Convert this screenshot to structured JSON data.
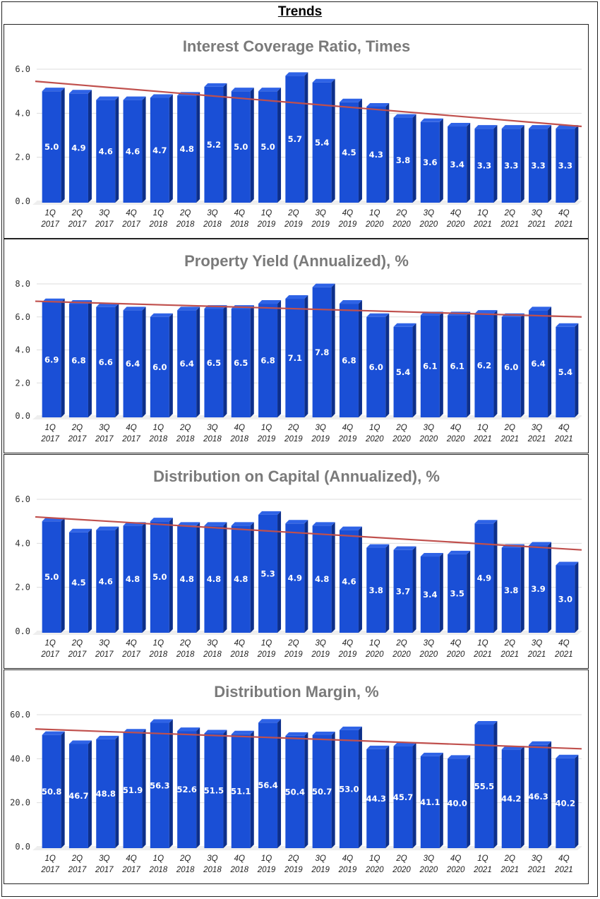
{
  "page": {
    "title": "Trends"
  },
  "colors": {
    "bar_front": "#1a4fd6",
    "bar_side": "#0d2f8a",
    "bar_top": "#2f63e6",
    "trend": "#c0504d",
    "grid": "#dddddd",
    "title": "#7a7a7a"
  },
  "categories": [
    [
      "1Q",
      "2017"
    ],
    [
      "2Q",
      "2017"
    ],
    [
      "3Q",
      "2017"
    ],
    [
      "4Q",
      "2017"
    ],
    [
      "1Q",
      "2018"
    ],
    [
      "2Q",
      "2018"
    ],
    [
      "3Q",
      "2018"
    ],
    [
      "4Q",
      "2018"
    ],
    [
      "1Q",
      "2019"
    ],
    [
      "2Q",
      "2019"
    ],
    [
      "3Q",
      "2019"
    ],
    [
      "4Q",
      "2019"
    ],
    [
      "1Q",
      "2020"
    ],
    [
      "2Q",
      "2020"
    ],
    [
      "3Q",
      "2020"
    ],
    [
      "4Q",
      "2020"
    ],
    [
      "1Q",
      "2021"
    ],
    [
      "2Q",
      "2021"
    ],
    [
      "3Q",
      "2021"
    ],
    [
      "4Q",
      "2021"
    ]
  ],
  "chart_data": [
    {
      "type": "bar",
      "title": "Interest Coverage Ratio, Times",
      "ylim": [
        0,
        6
      ],
      "yticks": [
        "0.0",
        "2.0",
        "4.0",
        "6.0"
      ],
      "ytick_values": [
        0,
        2,
        4,
        6
      ],
      "values": [
        5.0,
        4.9,
        4.6,
        4.6,
        4.7,
        4.8,
        5.2,
        5.0,
        5.0,
        5.7,
        5.4,
        4.5,
        4.3,
        3.8,
        3.6,
        3.4,
        3.3,
        3.3,
        3.3,
        3.3
      ],
      "labels": [
        "5.0",
        "4.9",
        "4.6",
        "4.6",
        "4.7",
        "4.8",
        "5.2",
        "5.0",
        "5.0",
        "5.7",
        "5.4",
        "4.5",
        "4.3",
        "3.8",
        "3.6",
        "3.4",
        "3.3",
        "3.3",
        "3.3",
        "3.3"
      ],
      "trendline": {
        "start": 5.45,
        "end": 3.4
      }
    },
    {
      "type": "bar",
      "title": "Property Yield (Annualized), %",
      "ylim": [
        0,
        8
      ],
      "yticks": [
        "0.0",
        "2.0",
        "4.0",
        "6.0",
        "8.0"
      ],
      "ytick_values": [
        0,
        2,
        4,
        6,
        8
      ],
      "values": [
        6.9,
        6.8,
        6.6,
        6.4,
        6.0,
        6.4,
        6.5,
        6.5,
        6.8,
        7.1,
        7.8,
        6.8,
        6.0,
        5.4,
        6.1,
        6.1,
        6.2,
        6.0,
        6.4,
        5.4
      ],
      "labels": [
        "6.9",
        "6.8",
        "6.6",
        "6.4",
        "6.0",
        "6.4",
        "6.5",
        "6.5",
        "6.8",
        "7.1",
        "7.8",
        "6.8",
        "6.0",
        "5.4",
        "6.1",
        "6.1",
        "6.2",
        "6.0",
        "6.4",
        "5.4"
      ],
      "trendline": {
        "start": 6.95,
        "end": 6.0
      }
    },
    {
      "type": "bar",
      "title": "Distribution on Capital (Annualized), %",
      "ylim": [
        0,
        6
      ],
      "yticks": [
        "0.0",
        "2.0",
        "4.0",
        "6.0"
      ],
      "ytick_values": [
        0,
        2,
        4,
        6
      ],
      "values": [
        5.0,
        4.5,
        4.6,
        4.8,
        5.0,
        4.8,
        4.8,
        4.8,
        5.3,
        4.9,
        4.8,
        4.6,
        3.8,
        3.7,
        3.4,
        3.5,
        4.9,
        3.8,
        3.9,
        3.0
      ],
      "labels": [
        "5.0",
        "4.5",
        "4.6",
        "4.8",
        "5.0",
        "4.8",
        "4.8",
        "4.8",
        "5.3",
        "4.9",
        "4.8",
        "4.6",
        "3.8",
        "3.7",
        "3.4",
        "3.5",
        "4.9",
        "3.8",
        "3.9",
        "3.0"
      ],
      "trendline": {
        "start": 5.2,
        "end": 3.7
      }
    },
    {
      "type": "bar",
      "title": "Distribution Margin, %",
      "ylim": [
        0,
        60
      ],
      "yticks": [
        "0.0",
        "20.0",
        "40.0",
        "60.0"
      ],
      "ytick_values": [
        0,
        20,
        40,
        60
      ],
      "values": [
        50.8,
        46.7,
        48.8,
        51.9,
        56.3,
        52.6,
        51.5,
        51.1,
        56.4,
        50.4,
        50.7,
        53.0,
        44.3,
        45.7,
        41.1,
        40.0,
        55.5,
        44.2,
        46.3,
        40.2
      ],
      "labels": [
        "50.8",
        "46.7",
        "48.8",
        "51.9",
        "56.3",
        "52.6",
        "51.5",
        "51.1",
        "56.4",
        "50.4",
        "50.7",
        "53.0",
        "44.3",
        "45.7",
        "41.1",
        "40.0",
        "55.5",
        "44.2",
        "46.3",
        "40.2"
      ],
      "trendline": {
        "start": 53.5,
        "end": 44.5
      }
    }
  ]
}
